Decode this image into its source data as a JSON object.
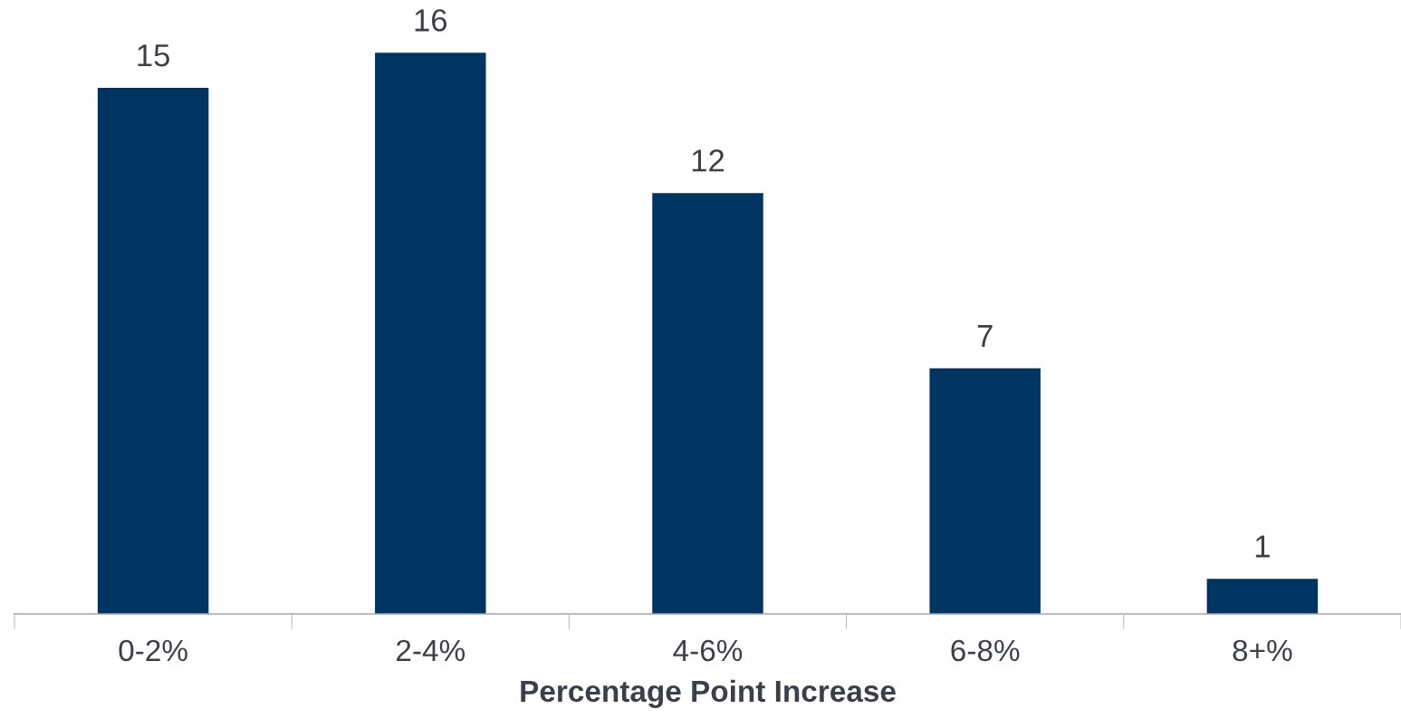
{
  "chart_data": {
    "type": "bar",
    "xlabel": "Percentage Point Increase",
    "categories": [
      "0-2%",
      "2-4%",
      "4-6%",
      "6-8%",
      "8+%"
    ],
    "values": [
      15,
      16,
      12,
      7,
      1
    ],
    "color": "#003561",
    "data_labels": true,
    "grid": false,
    "legend": false
  }
}
